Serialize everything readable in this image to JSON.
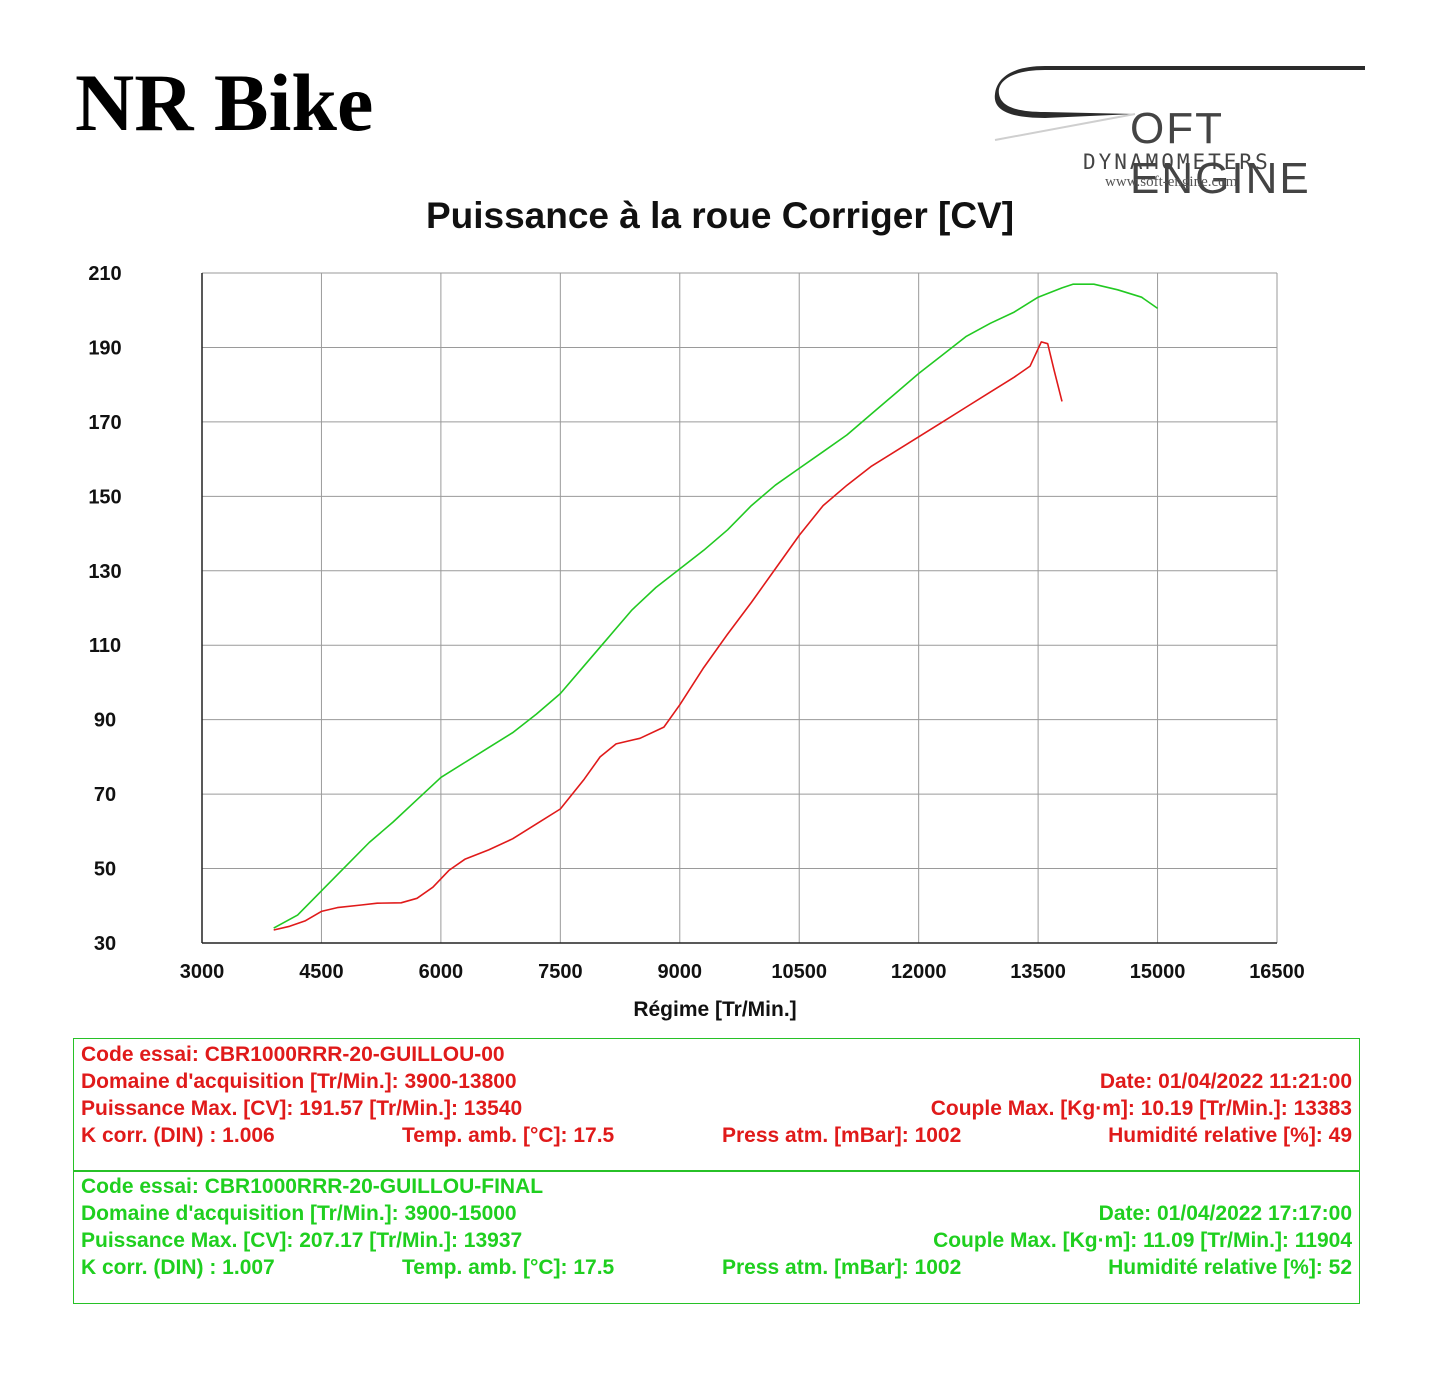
{
  "brand": "NR Bike",
  "logo": {
    "name": "OFT ENGINE",
    "sub": "DYNAMOMETERS",
    "url": "www.soft-engine.com"
  },
  "colors": {
    "run1": "#e01a1a",
    "run2": "#22c922",
    "grid": "#9a9a9a",
    "frame": "#27c127"
  },
  "chart_data": {
    "type": "line",
    "title": "Puissance à la roue Corriger [CV]",
    "xlabel": "Régime [Tr/Min.]",
    "ylabel": "",
    "xlim": [
      3000,
      16500
    ],
    "ylim": [
      30,
      210
    ],
    "xticks": [
      "3000",
      "4500",
      "6000",
      "7500",
      "9000",
      "10500",
      "12000",
      "13500",
      "15000",
      "16500"
    ],
    "yticks": [
      "30",
      "50",
      "70",
      "90",
      "110",
      "130",
      "150",
      "170",
      "190",
      "210"
    ],
    "grid": true,
    "series": [
      {
        "color": "#e01a1a",
        "points": [
          [
            3900,
            33.5
          ],
          [
            4100,
            34.5
          ],
          [
            4300,
            36
          ],
          [
            4500,
            38.5
          ],
          [
            4700,
            39.5
          ],
          [
            5000,
            40.2
          ],
          [
            5200,
            40.7
          ],
          [
            5500,
            40.8
          ],
          [
            5700,
            42
          ],
          [
            5900,
            45
          ],
          [
            6100,
            49.5
          ],
          [
            6300,
            52.5
          ],
          [
            6600,
            55
          ],
          [
            6900,
            58
          ],
          [
            7200,
            62
          ],
          [
            7500,
            66
          ],
          [
            7800,
            74
          ],
          [
            8000,
            80
          ],
          [
            8200,
            83.5
          ],
          [
            8500,
            85
          ],
          [
            8800,
            88
          ],
          [
            9000,
            94
          ],
          [
            9300,
            104
          ],
          [
            9600,
            113
          ],
          [
            9900,
            121.5
          ],
          [
            10200,
            130.5
          ],
          [
            10500,
            139.5
          ],
          [
            10800,
            147.5
          ],
          [
            11100,
            153
          ],
          [
            11400,
            158
          ],
          [
            11700,
            162
          ],
          [
            12000,
            166
          ],
          [
            12300,
            170
          ],
          [
            12600,
            174
          ],
          [
            12900,
            178
          ],
          [
            13200,
            182
          ],
          [
            13400,
            185
          ],
          [
            13540,
            191.5
          ],
          [
            13620,
            191
          ],
          [
            13700,
            184
          ],
          [
            13800,
            175.5
          ]
        ]
      },
      {
        "color": "#22c922",
        "points": [
          [
            3900,
            34
          ],
          [
            4200,
            37.5
          ],
          [
            4500,
            44
          ],
          [
            4800,
            50.5
          ],
          [
            5100,
            57
          ],
          [
            5400,
            62.5
          ],
          [
            5700,
            68.5
          ],
          [
            6000,
            74.5
          ],
          [
            6300,
            78.5
          ],
          [
            6600,
            82.5
          ],
          [
            6900,
            86.5
          ],
          [
            7200,
            91.5
          ],
          [
            7500,
            97
          ],
          [
            7800,
            104.5
          ],
          [
            8100,
            112
          ],
          [
            8400,
            119.5
          ],
          [
            8700,
            125.5
          ],
          [
            9000,
            130.5
          ],
          [
            9300,
            135.5
          ],
          [
            9600,
            141
          ],
          [
            9900,
            147.5
          ],
          [
            10200,
            153
          ],
          [
            10500,
            157.5
          ],
          [
            10800,
            162
          ],
          [
            11100,
            166.5
          ],
          [
            11400,
            172
          ],
          [
            11700,
            177.5
          ],
          [
            12000,
            183
          ],
          [
            12300,
            188
          ],
          [
            12600,
            193
          ],
          [
            12900,
            196.5
          ],
          [
            13200,
            199.5
          ],
          [
            13500,
            203.5
          ],
          [
            13800,
            206
          ],
          [
            13937,
            207
          ],
          [
            14200,
            207
          ],
          [
            14500,
            205.5
          ],
          [
            14800,
            203.5
          ],
          [
            15000,
            200.5
          ]
        ]
      }
    ]
  },
  "runs": [
    {
      "code": "Code essai: CBR1000RRR-20-GUILLOU-00",
      "domain": "Domaine d'acquisition [Tr/Min.]: 3900-13800",
      "date": "Date: 01/04/2022   11:21:00",
      "power": "Puissance Max. [CV]: 191.57   [Tr/Min.]: 13540",
      "torque": "Couple Max. [Kg·m]: 10.19   [Tr/Min.]: 13383",
      "kcorr": "K corr. (DIN) : 1.006",
      "temp": "Temp. amb. [°C]: 17.5",
      "press": "Press atm. [mBar]: 1002",
      "humid": "Humidité relative [%]: 49"
    },
    {
      "code": "Code essai: CBR1000RRR-20-GUILLOU-FINAL",
      "domain": "Domaine d'acquisition [Tr/Min.]: 3900-15000",
      "date": "Date: 01/04/2022   17:17:00",
      "power": "Puissance Max. [CV]: 207.17   [Tr/Min.]: 13937",
      "torque": "Couple Max. [Kg·m]: 11.09   [Tr/Min.]: 11904",
      "kcorr": "K corr. (DIN) : 1.007",
      "temp": "Temp. amb. [°C]: 17.5",
      "press": "Press atm. [mBar]: 1002",
      "humid": "Humidité relative [%]: 52"
    }
  ]
}
